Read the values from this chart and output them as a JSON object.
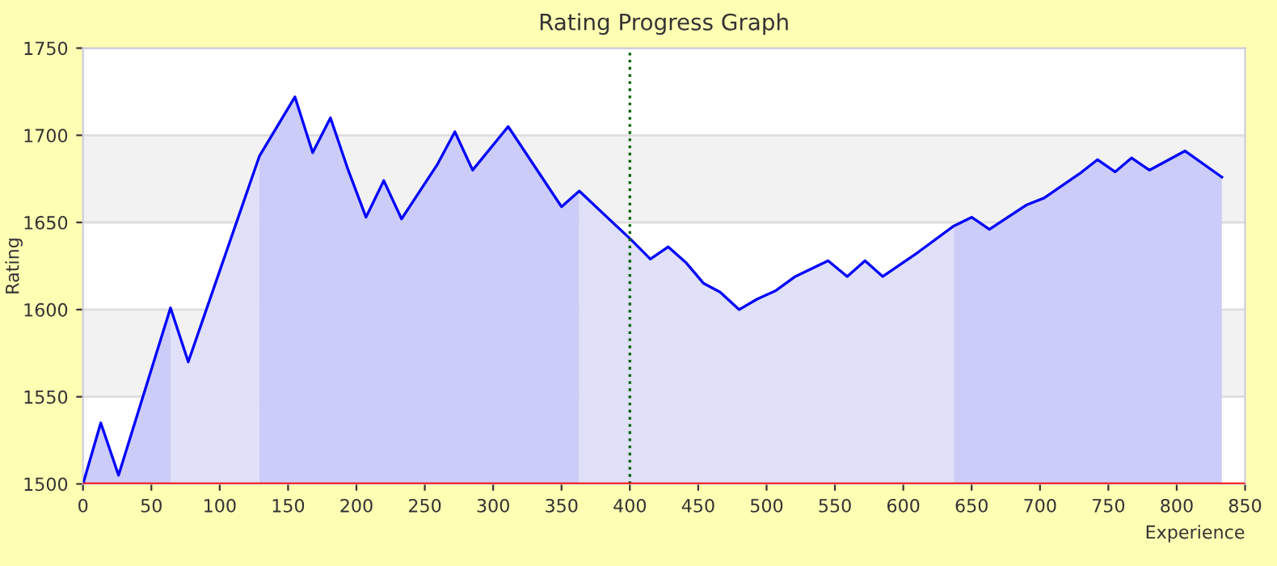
{
  "chart_data": {
    "type": "area",
    "title": "Rating Progress Graph",
    "xlabel": "Experience",
    "ylabel": "Rating",
    "xlim": [
      0,
      850
    ],
    "xticks": [
      0,
      50,
      100,
      150,
      200,
      250,
      300,
      350,
      400,
      450,
      500,
      550,
      600,
      650,
      700,
      750,
      800,
      850
    ],
    "ylim": [
      1500,
      1750
    ],
    "yticks": [
      1500,
      1550,
      1600,
      1650,
      1700,
      1750
    ],
    "grid": "y",
    "series": [
      {
        "color": "#ccccf8",
        "x": [
          0,
          13,
          26,
          64
        ],
        "values": [
          1500,
          1535,
          1505,
          1601
        ]
      },
      {
        "color": "#e0e0f8",
        "x": [
          64,
          77,
          129
        ],
        "values": [
          1601,
          1570,
          1688
        ]
      },
      {
        "color": "#ccccf8",
        "x": [
          129,
          155,
          168,
          181,
          194,
          207,
          220,
          233,
          259,
          272,
          285,
          311,
          350,
          363
        ],
        "values": [
          1688,
          1722,
          1690,
          1710,
          1680,
          1653,
          1674,
          1652,
          1683,
          1702,
          1680,
          1705,
          1659,
          1668
        ]
      },
      {
        "color": "#e0e0f8",
        "x": [
          363,
          401,
          415,
          428,
          441,
          454,
          466,
          480,
          493,
          507,
          521,
          545,
          559,
          572,
          585,
          611,
          637
        ],
        "values": [
          1668,
          1640,
          1629,
          1636,
          1627,
          1615,
          1610,
          1600,
          1606,
          1611,
          1619,
          1628,
          1619,
          1628,
          1619,
          1633,
          1648
        ]
      },
      {
        "color": "#ccccf8",
        "x": [
          637,
          650,
          663,
          690,
          703,
          729,
          742,
          755,
          767,
          780,
          806,
          833
        ],
        "values": [
          1648,
          1653,
          1646,
          1660,
          1664,
          1678,
          1686,
          1679,
          1687,
          1680,
          1691,
          1676
        ]
      },
      {
        "type": "line",
        "color": "#0000ff",
        "x": [
          0,
          13,
          26,
          64,
          77,
          129,
          155,
          168,
          181,
          194,
          207,
          220,
          233,
          259,
          272,
          285,
          311,
          350,
          363,
          401,
          415,
          428,
          441,
          454,
          466,
          480,
          493,
          507,
          521,
          545,
          559,
          572,
          585,
          611,
          637,
          650,
          663,
          690,
          703,
          729,
          742,
          755,
          767,
          780,
          806,
          833
        ],
        "values": [
          1500,
          1535,
          1505,
          1601,
          1570,
          1688,
          1722,
          1690,
          1710,
          1680,
          1653,
          1674,
          1652,
          1683,
          1702,
          1680,
          1705,
          1659,
          1668,
          1640,
          1629,
          1636,
          1627,
          1615,
          1610,
          1600,
          1606,
          1611,
          1619,
          1628,
          1619,
          1628,
          1619,
          1633,
          1648,
          1653,
          1646,
          1660,
          1664,
          1678,
          1686,
          1679,
          1687,
          1680,
          1691,
          1676
        ]
      }
    ],
    "bands": [
      {
        "axis": "y",
        "from": 1550,
        "to": 1600,
        "color": "#f2f2f2"
      },
      {
        "axis": "y",
        "from": 1650,
        "to": 1700,
        "color": "#f2f2f2"
      }
    ],
    "ref_lines": [
      {
        "axis": "x",
        "value": 400,
        "color": "#006400",
        "line_style": "dotted"
      },
      {
        "axis": "y",
        "value": 1500,
        "color": "#ff0000",
        "line_style": "solid"
      }
    ]
  }
}
